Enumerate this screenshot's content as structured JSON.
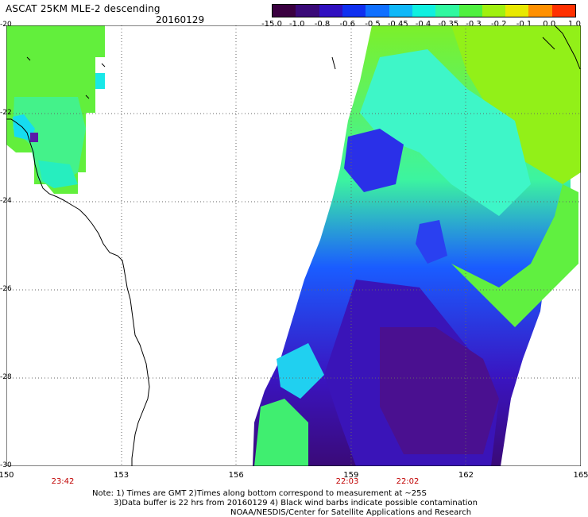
{
  "title": "ASCAT 25KM MLE-2 descending",
  "date": "20160129",
  "colorbar": {
    "labels": [
      "-15.0",
      "-1.0",
      "-0.8",
      "-0.6",
      "-0.5",
      "-0.45",
      "-0.4",
      "-0.35",
      "-0.3",
      "-0.2",
      "-0.1",
      "0.0",
      "1.0"
    ],
    "colors": [
      "#3a0040",
      "#3a0a78",
      "#3010c0",
      "#1030f0",
      "#1070ff",
      "#10b8f8",
      "#10f0e0",
      "#30f8a0",
      "#50f040",
      "#a0f010",
      "#e8e800",
      "#ff9000",
      "#ff3000"
    ]
  },
  "lat_labels": [
    "-20",
    "-22",
    "-24",
    "-26",
    "-28",
    "-30"
  ],
  "lon_labels": [
    "150",
    "153",
    "156",
    "159",
    "162",
    "165"
  ],
  "times": [
    "23:42",
    "22:03",
    "22:02"
  ],
  "notes": [
    "Note: 1) Times are GMT 2)Times along bottom correspond to measurement at ~25S",
    "3)Data buffer is 22 hrs from 20160129 4) Black wind barbs indicate possible contamination",
    "NOAA/NESDIS/Center for Satellite Applications and Research"
  ]
}
